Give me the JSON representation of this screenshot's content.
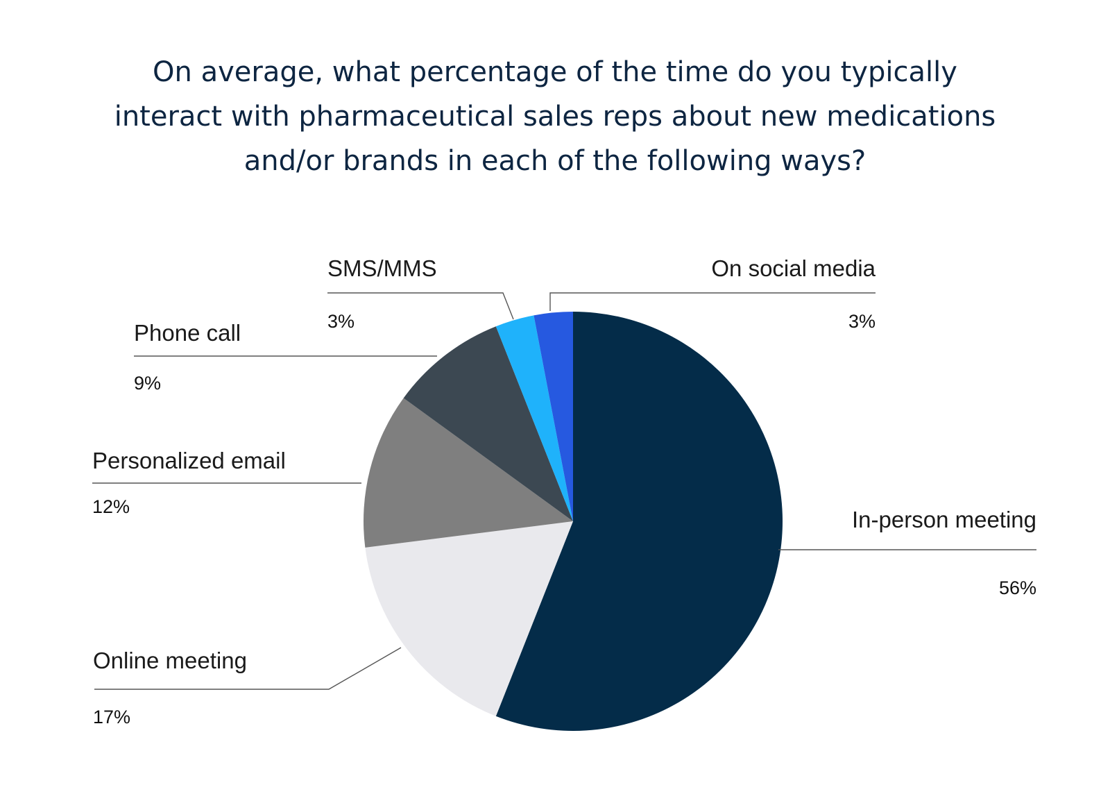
{
  "title_lines": [
    "On average, what percentage of the time do you typically",
    "interact with pharmaceutical sales reps about new medications",
    "and/or brands in each of the following ways?"
  ],
  "chart_data": {
    "type": "pie",
    "title": "On average, what percentage of the time do you typically interact with pharmaceutical sales reps about new medications and/or brands in each of the following ways?",
    "slices": [
      {
        "label": "In-person meeting",
        "value": 56,
        "display": "56%",
        "color": "#042c49"
      },
      {
        "label": "Online meeting",
        "value": 17,
        "display": "17%",
        "color": "#e9e9ed"
      },
      {
        "label": "Personalized email",
        "value": 12,
        "display": "12%",
        "color": "#7f7f7f"
      },
      {
        "label": "Phone call",
        "value": 9,
        "display": "9%",
        "color": "#3c4852"
      },
      {
        "label": "SMS/MMS",
        "value": 3,
        "display": "3%",
        "color": "#1fb2fb"
      },
      {
        "label": "On social media",
        "value": 3,
        "display": "3%",
        "color": "#2659e0"
      }
    ]
  }
}
